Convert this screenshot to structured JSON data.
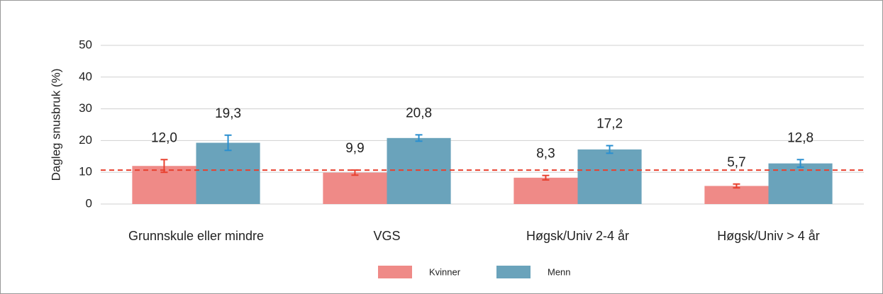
{
  "chart_data": {
    "type": "bar",
    "y_label": "Dagleg snusbruk (%)",
    "categories": [
      "Grunnskule eller mindre",
      "VGS",
      "Høgsk/Univ 2-4 år",
      "Høgsk/Univ > 4 år"
    ],
    "series": [
      {
        "name": "Kvinner",
        "color": "#ef8a87",
        "error_color": "#e8412f",
        "values": [
          12.0,
          9.9,
          8.3,
          5.7
        ],
        "value_labels": [
          "12,0",
          "9,9",
          "8,3",
          "5,7"
        ],
        "errors": [
          2.0,
          0.8,
          0.7,
          0.6
        ]
      },
      {
        "name": "Menn",
        "color": "#6aa3bb",
        "error_color": "#2a8fd0",
        "values": [
          19.3,
          20.8,
          17.2,
          12.8
        ],
        "value_labels": [
          "19,3",
          "20,8",
          "17,2",
          "12,8"
        ],
        "errors": [
          2.4,
          1.0,
          1.2,
          1.2
        ]
      }
    ],
    "reference_line": 10.7,
    "reference_color": "#e8412f",
    "ylim": [
      0,
      50
    ],
    "yticks": [
      0,
      10,
      20,
      30,
      40,
      50
    ],
    "grid": true
  }
}
